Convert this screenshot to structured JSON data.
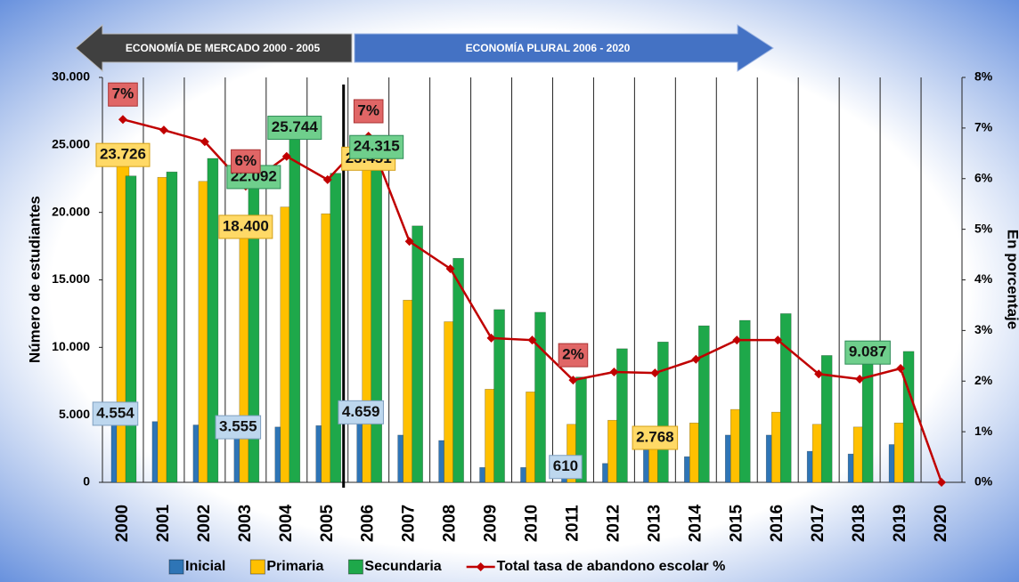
{
  "chart_data": {
    "type": "bar",
    "annotations": [
      {
        "text": "ECONOMÍA DE MERCADO 2000 - 2005"
      },
      {
        "text": "ECONOMÍA PLURAL 2006  - 2020"
      }
    ],
    "y_label": "Número de estudiantes",
    "y2_label": "En porcentaje",
    "categories": [
      "2000",
      "2001",
      "2002",
      "2003",
      "2004",
      "2005",
      "2006",
      "2007",
      "2008",
      "2009",
      "2010",
      "2011",
      "2012",
      "2013",
      "2014",
      "2015",
      "2016",
      "2017",
      "2018",
      "2019",
      "2020"
    ],
    "series": [
      {
        "name": "Inicial",
        "color": "#2e75b6",
        "values": [
          4554,
          4500,
          4250,
          3555,
          4100,
          4200,
          4659,
          3500,
          3100,
          1100,
          1100,
          610,
          1400,
          2600,
          1900,
          3500,
          3500,
          2300,
          2100,
          2800,
          null
        ],
        "value_labels": [
          "4.554",
          null,
          null,
          "3.555",
          null,
          null,
          "4.659",
          null,
          null,
          null,
          null,
          "610",
          null,
          null,
          null,
          null,
          null,
          null,
          null,
          null,
          null
        ]
      },
      {
        "name": "Primaria",
        "color": "#ffc000",
        "values": [
          23726,
          22600,
          22300,
          18400,
          20400,
          19900,
          23451,
          13500,
          11900,
          6900,
          6700,
          4300,
          4600,
          2768,
          4400,
          5400,
          5200,
          4300,
          4100,
          4400,
          null
        ],
        "value_labels": [
          "23.726",
          null,
          null,
          "18.400",
          null,
          null,
          "23.451",
          null,
          null,
          null,
          null,
          null,
          null,
          "2.768",
          null,
          null,
          null,
          null,
          null,
          null,
          null
        ]
      },
      {
        "name": "Secundaria",
        "color": "#1ea84a",
        "values": [
          22700,
          23000,
          24000,
          22092,
          25744,
          22900,
          24315,
          19000,
          16600,
          12800,
          12600,
          7800,
          9900,
          10400,
          11600,
          12000,
          12500,
          9400,
          9087,
          9700,
          null
        ],
        "value_labels": [
          null,
          null,
          null,
          "22.092",
          "25.744",
          null,
          "24.315",
          null,
          null,
          null,
          null,
          null,
          null,
          null,
          null,
          null,
          null,
          null,
          "9.087",
          null,
          null
        ]
      },
      {
        "name": "Total tasa de abandono escolar %",
        "color": "#c00000",
        "type": "line",
        "axis": "y2",
        "values": [
          7.17,
          6.96,
          6.73,
          5.85,
          6.44,
          5.98,
          6.84,
          4.76,
          4.22,
          2.85,
          2.81,
          2.02,
          2.18,
          2.16,
          2.43,
          2.81,
          2.81,
          2.14,
          2.04,
          2.25,
          0
        ],
        "value_labels": [
          "7%",
          null,
          null,
          "6%",
          null,
          null,
          "7%",
          null,
          null,
          null,
          null,
          "2%",
          null,
          null,
          null,
          null,
          null,
          null,
          null,
          null,
          null
        ]
      }
    ],
    "ylim": [
      0,
      30000
    ],
    "yticks": [
      0,
      {
        "value": 5000,
        "label": "5.000"
      },
      {
        "value": 10000,
        "label": "10.000"
      },
      {
        "value": 15000,
        "label": "15.000"
      },
      {
        "value": 20000,
        "label": "20.000"
      },
      {
        "value": 25000,
        "label": "25.000"
      },
      {
        "value": 30000,
        "label": "30.000"
      }
    ],
    "y2lim": [
      0,
      8
    ],
    "y2ticks": [
      {
        "value": 0,
        "label": "0%"
      },
      {
        "value": 1,
        "label": "1%"
      },
      {
        "value": 2,
        "label": "2%"
      },
      {
        "value": 3,
        "label": "3%"
      },
      {
        "value": 4,
        "label": "4%"
      },
      {
        "value": 5,
        "label": "5%"
      },
      {
        "value": 6,
        "label": "6%"
      },
      {
        "value": 7,
        "label": "7%"
      },
      {
        "value": 8,
        "label": "8%"
      }
    ],
    "legend": "bottom"
  }
}
